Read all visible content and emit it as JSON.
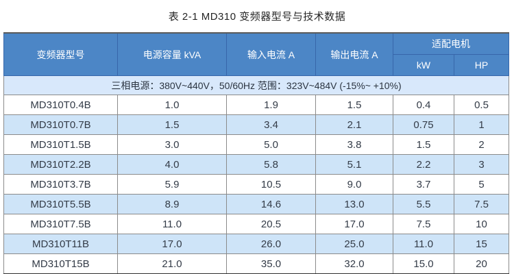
{
  "title": "表 2-1 MD310 变频器型号与技术数据",
  "colors": {
    "header_bg": "#4c86c6",
    "header_border": "#3766aa",
    "header_text": "#ffffff",
    "stripe_bg": "#cee4f8",
    "note_bg": "#d8e8fb",
    "cell_border": "#8a8a8a",
    "outer_border_bottom": "#2e2e2e",
    "body_text": "#333b47"
  },
  "table": {
    "headers": {
      "model": "变频器型号",
      "capacity": "电源容量 kVA",
      "input_current": "输入电流 A",
      "output_current": "输出电流 A",
      "motor": "适配电机",
      "kw": "kW",
      "hp": "HP"
    },
    "power_note": "三相电源：380V~440V，50/60Hz 范围：323V~484V (-15%~ +10%)",
    "rows": [
      {
        "model": "MD310T0.4B",
        "capacity": "1.0",
        "input": "1.9",
        "output": "1.5",
        "kw": "0.4",
        "hp": "0.5"
      },
      {
        "model": "MD310T0.7B",
        "capacity": "1.5",
        "input": "3.4",
        "output": "2.1",
        "kw": "0.75",
        "hp": "1"
      },
      {
        "model": "MD310T1.5B",
        "capacity": "3.0",
        "input": "5.0",
        "output": "3.8",
        "kw": "1.5",
        "hp": "2"
      },
      {
        "model": "MD310T2.2B",
        "capacity": "4.0",
        "input": "5.8",
        "output": "5.1",
        "kw": "2.2",
        "hp": "3"
      },
      {
        "model": "MD310T3.7B",
        "capacity": "5.9",
        "input": "10.5",
        "output": "9.0",
        "kw": "3.7",
        "hp": "5"
      },
      {
        "model": "MD310T5.5B",
        "capacity": "8.9",
        "input": "14.6",
        "output": "13.0",
        "kw": "5.5",
        "hp": "7.5"
      },
      {
        "model": "MD310T7.5B",
        "capacity": "11.0",
        "input": "20.5",
        "output": "17.0",
        "kw": "7.5",
        "hp": "10"
      },
      {
        "model": "MD310T11B",
        "capacity": "17.0",
        "input": "26.0",
        "output": "25.0",
        "kw": "11.0",
        "hp": "15"
      },
      {
        "model": "MD310T15B",
        "capacity": "21.0",
        "input": "35.0",
        "output": "32.0",
        "kw": "15.0",
        "hp": "20"
      }
    ]
  }
}
